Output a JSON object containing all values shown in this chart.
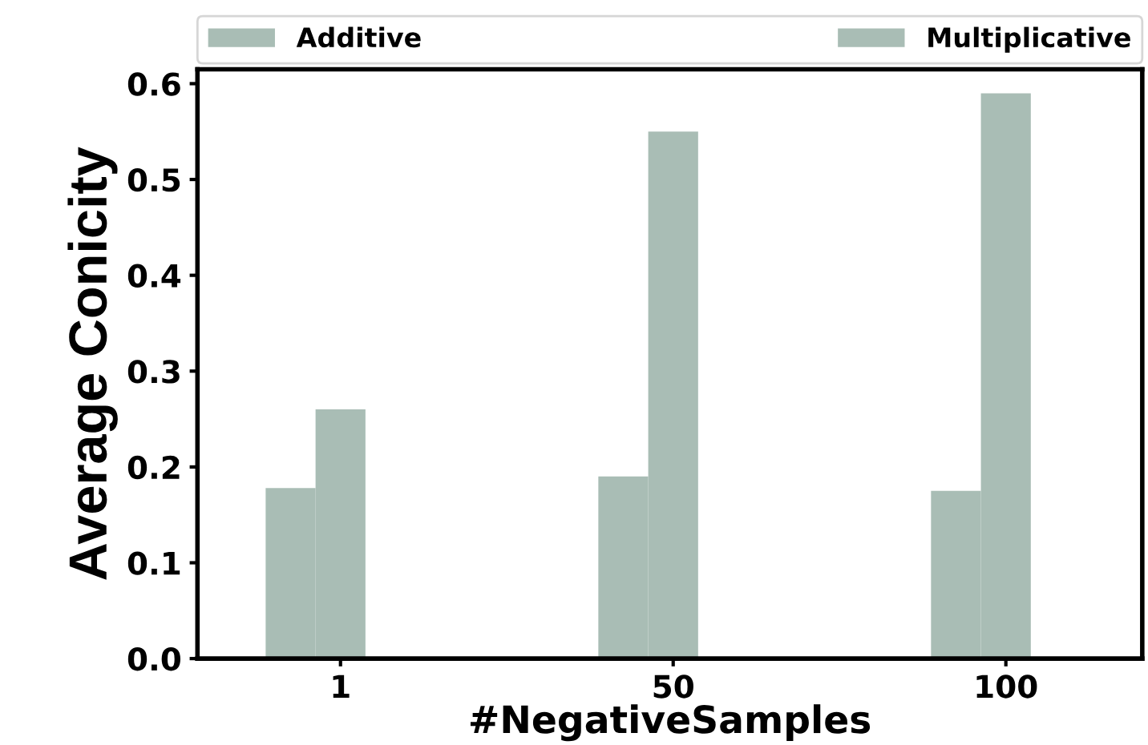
{
  "chart_data": {
    "type": "bar",
    "xlabel": "#NegativeSamples",
    "ylabel": "Average Conicity",
    "categories": [
      "1",
      "50",
      "100"
    ],
    "series": [
      {
        "name": "Additive",
        "color": "#a9bdb5",
        "values": [
          0.178,
          0.19,
          0.175
        ]
      },
      {
        "name": "Multiplicative",
        "color": "#a9bdb5",
        "values": [
          0.26,
          0.55,
          0.59
        ]
      }
    ],
    "ylim": [
      0,
      0.615
    ],
    "yticks": [
      {
        "value": 0,
        "label": "0.0"
      },
      0.1,
      0.2,
      0.3,
      0.4,
      0.5,
      0.6
    ],
    "grid": false,
    "legend": "top"
  }
}
